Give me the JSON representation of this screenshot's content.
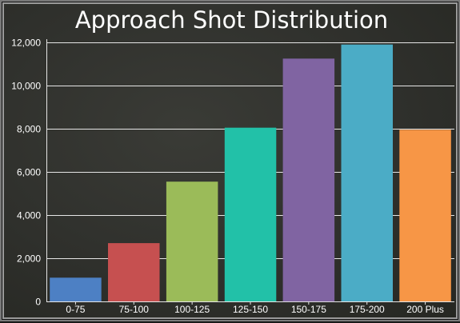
{
  "chart_data": {
    "type": "bar",
    "title": "Approach Shot Distribution",
    "xlabel": "",
    "ylabel": "",
    "categories": [
      "0-75",
      "75-100",
      "100-125",
      "125-150",
      "150-175",
      "175-200",
      "200 Plus"
    ],
    "values": [
      1100,
      2700,
      5550,
      8050,
      11250,
      11900,
      7950
    ],
    "colors": [
      "#4d80c4",
      "#c65050",
      "#9bbb59",
      "#22c1a8",
      "#8064a2",
      "#4bacc6",
      "#f79646"
    ],
    "ylim": [
      0,
      12000
    ],
    "yticks": [
      0,
      2000,
      4000,
      6000,
      8000,
      10000,
      12000
    ],
    "ytick_labels": [
      "0",
      "2,000",
      "4,000",
      "6,000",
      "8,000",
      "10,000",
      "12,000"
    ],
    "grid": true,
    "legend": "none"
  }
}
